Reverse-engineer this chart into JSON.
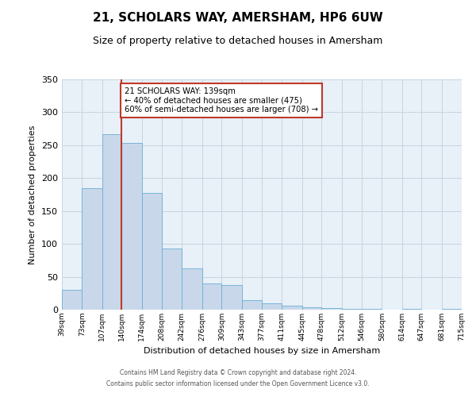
{
  "title": "21, SCHOLARS WAY, AMERSHAM, HP6 6UW",
  "subtitle": "Size of property relative to detached houses in Amersham",
  "xlabel": "Distribution of detached houses by size in Amersham",
  "ylabel": "Number of detached properties",
  "bar_edges": [
    39,
    73,
    107,
    140,
    174,
    208,
    242,
    276,
    309,
    343,
    377,
    411,
    445,
    478,
    512,
    546,
    580,
    614,
    647,
    681,
    715
  ],
  "bar_heights": [
    30,
    185,
    267,
    253,
    178,
    93,
    63,
    40,
    38,
    14,
    10,
    6,
    4,
    2,
    1,
    1,
    0,
    1,
    0,
    1
  ],
  "bar_color": "#c8d8ea",
  "bar_edge_color": "#6baed6",
  "property_size": 139,
  "vline_color": "#c0392b",
  "annotation_line1": "21 SCHOLARS WAY: 139sqm",
  "annotation_line2": "← 40% of detached houses are smaller (475)",
  "annotation_line3": "60% of semi-detached houses are larger (708) →",
  "annotation_box_edgecolor": "#c0392b",
  "annotation_box_facecolor": "white",
  "ylim": [
    0,
    350
  ],
  "yticks": [
    0,
    50,
    100,
    150,
    200,
    250,
    300,
    350
  ],
  "grid_color": "#c8d4e0",
  "bg_color": "#e8f0f8",
  "footer_line1": "Contains HM Land Registry data © Crown copyright and database right 2024.",
  "footer_line2": "Contains public sector information licensed under the Open Government Licence v3.0."
}
